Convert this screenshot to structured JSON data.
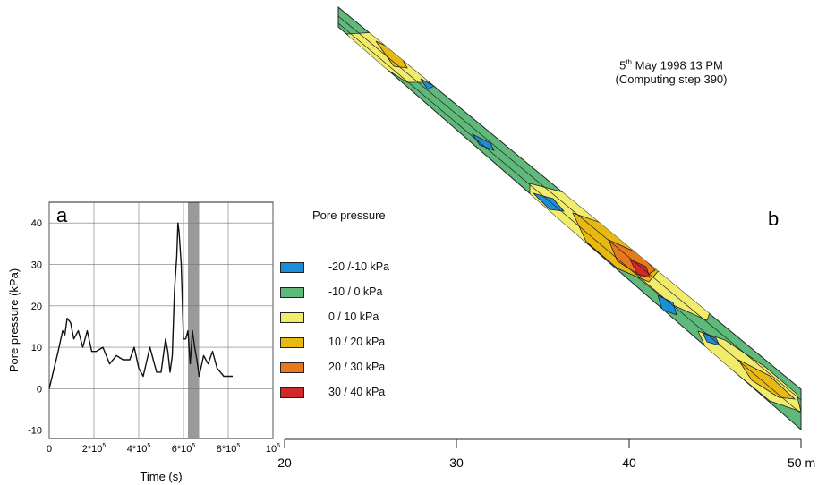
{
  "panel_a": {
    "letter": "a",
    "chart_data": {
      "type": "line",
      "xlabel": "Time (s)",
      "ylabel": "Pore pressure (kPa)",
      "xlim": [
        0,
        1000000
      ],
      "ylim": [
        -12,
        45
      ],
      "x_tick_labels": [
        "0",
        "2*10",
        "4*10",
        "6*10",
        "8*10",
        "10"
      ],
      "x_tick_superscripts": [
        "",
        "5",
        "5",
        "5",
        "5",
        "6"
      ],
      "y_tick_labels": [
        "40",
        "30",
        "20",
        "10",
        "0",
        "-10"
      ],
      "grid": true,
      "highlight_band": [
        620000,
        670000
      ],
      "series": [
        {
          "x": [
            0,
            40000,
            60000,
            70000,
            80000,
            95000,
            110000,
            130000,
            150000,
            170000,
            190000,
            210000,
            240000,
            270000,
            300000,
            330000,
            360000,
            380000,
            400000,
            420000,
            450000,
            480000,
            500000,
            520000,
            530000,
            540000,
            550000,
            560000,
            570000,
            575000,
            580000,
            590000,
            600000,
            610000,
            620000,
            630000,
            640000,
            650000,
            660000,
            670000,
            690000,
            700000,
            710000,
            730000,
            750000,
            780000,
            800000,
            820000
          ],
          "y": [
            0,
            9,
            14,
            13,
            17,
            16,
            12,
            14,
            10,
            14,
            9,
            9,
            10,
            6,
            8,
            7,
            7,
            10,
            5,
            3,
            10,
            4,
            4,
            12,
            9,
            4,
            8,
            24,
            32,
            40,
            38,
            30,
            12,
            12,
            14,
            6,
            14,
            10,
            7,
            3,
            8,
            7,
            6,
            9,
            5,
            3,
            3,
            3
          ]
        }
      ]
    }
  },
  "panel_b": {
    "letter": "b",
    "date_main": "5",
    "date_sup": "th",
    "date_rest": " May 1998 13 PM",
    "step_label": "(Computing step 390)",
    "axis_ticks": [
      "20",
      "30",
      "40",
      "50 m"
    ],
    "legend_title": "Pore pressure",
    "legend": [
      {
        "label": "-20 /-10 kPa",
        "color": "#1a8fd8"
      },
      {
        "label": "-10 / 0 kPa",
        "color": "#5fb97a"
      },
      {
        "label": "0 / 10 kPa",
        "color": "#f2ec6c"
      },
      {
        "label": "10 / 20 kPa",
        "color": "#e8b912"
      },
      {
        "label": "20 / 30 kPa",
        "color": "#e8781c"
      },
      {
        "label": "30 / 40 kPa",
        "color": "#d2282a"
      }
    ]
  }
}
